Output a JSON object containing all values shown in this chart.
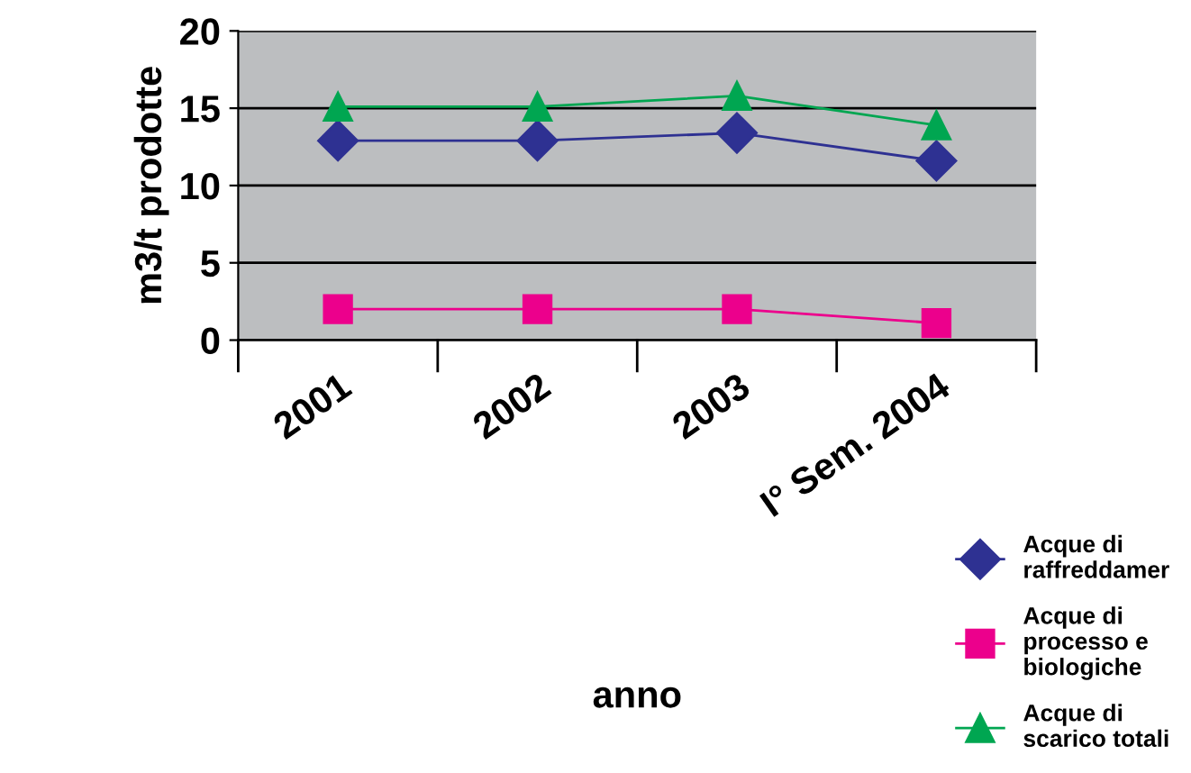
{
  "chart_data": {
    "type": "line",
    "xlabel": "anno",
    "ylabel": "m3/t prodotte",
    "categories": [
      "2001",
      "2002",
      "2003",
      "I° Sem. 2004"
    ],
    "series": [
      {
        "name": "Acque di\nraffreddamer",
        "color": "#2e3192",
        "marker": "diamond",
        "values": [
          12.9,
          12.9,
          13.4,
          11.6
        ]
      },
      {
        "name": "Acque di\nprocesso e\nbiologiche",
        "color": "#ec008c",
        "marker": "square",
        "values": [
          2.0,
          2.0,
          2.0,
          1.1
        ]
      },
      {
        "name": "Acque di\nscarico totali",
        "color": "#00a651",
        "marker": "triangle",
        "values": [
          15.1,
          15.1,
          15.8,
          13.9
        ]
      }
    ],
    "ylim": [
      0,
      20
    ],
    "yticks": [
      0,
      5,
      10,
      15,
      20
    ],
    "grid": "y",
    "legend": "bottom right"
  }
}
